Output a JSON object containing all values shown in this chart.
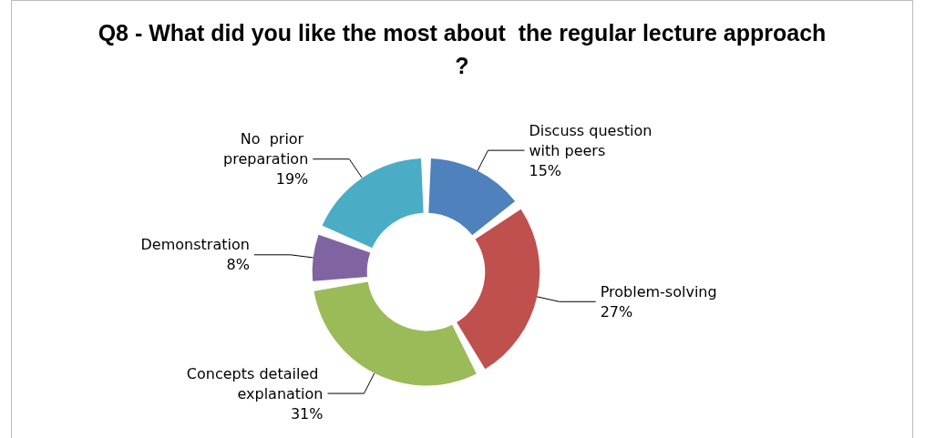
{
  "chart_data": {
    "type": "donut",
    "title": "Q8 - What did you like the most about  the regular lecture approach?",
    "categories": [
      "Discuss question with peers",
      "Problem-solving",
      "Concepts detailed explanation",
      "Demonstration",
      "No  prior preparation"
    ],
    "values": [
      15,
      27,
      31,
      8,
      19
    ],
    "colors": [
      "#4f81bd",
      "#c0504d",
      "#9bbb59",
      "#8064a2",
      "#4bacc6"
    ],
    "value_labels": [
      "15%",
      "27%",
      "31%",
      "8%",
      "19%"
    ],
    "legend": false
  }
}
